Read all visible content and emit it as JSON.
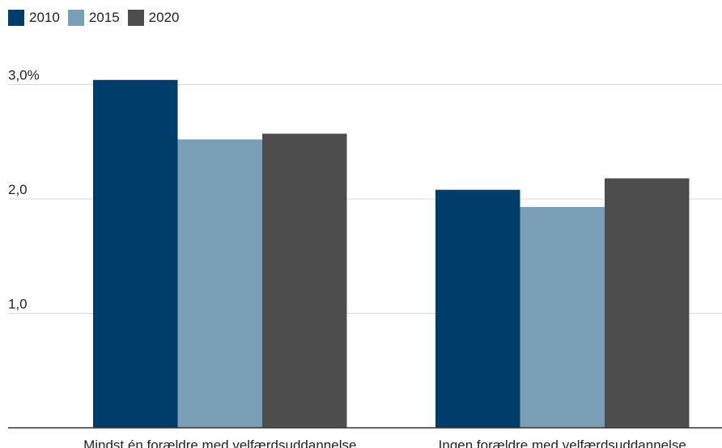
{
  "chart_data": {
    "type": "bar",
    "categories": [
      "Mindst én forældre med velfærdsuddannelse",
      "Ingen forældre med velfærdsuddannelse"
    ],
    "series": [
      {
        "name": "2010",
        "values": [
          3.04,
          2.08
        ],
        "color": "#003d6b"
      },
      {
        "name": "2015",
        "values": [
          2.52,
          1.93
        ],
        "color": "#7a9eb5"
      },
      {
        "name": "2020",
        "values": [
          2.57,
          2.18
        ],
        "color": "#4d4d4d"
      }
    ],
    "y_ticks": [
      {
        "value": 1.0,
        "label": "1,0"
      },
      {
        "value": 2.0,
        "label": "2,0"
      },
      {
        "value": 3.0,
        "label": "3,0%"
      }
    ],
    "ylim": [
      0,
      3.2
    ],
    "grid": true,
    "legend_position": "top-left"
  }
}
